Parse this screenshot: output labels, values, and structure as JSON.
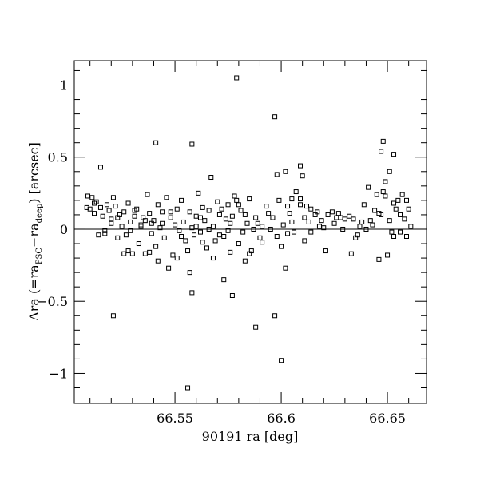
{
  "chart_data": {
    "type": "scatter",
    "title": "",
    "xlabel": "90191 ra [deg]",
    "ylabel_parts": {
      "main": "Δra (=ra",
      "sub1": "PSC",
      "mid": "−ra",
      "sub2": "deep",
      "end": ") [arcsec]"
    },
    "xlim": [
      66.5026,
      66.6684
    ],
    "ylim": [
      -1.208,
      1.169
    ],
    "xticks": [
      66.55,
      66.6,
      66.65
    ],
    "xtick_labels": [
      "66.55",
      "66.6",
      "66.65"
    ],
    "yticks": [
      -1,
      -0.5,
      0,
      0.5,
      1
    ],
    "ytick_labels": [
      "−1",
      "−0.5",
      "0",
      "0.5",
      "1"
    ],
    "zero_line": true,
    "grid": false,
    "marker": "open-square",
    "color": "#000000",
    "points": [
      [
        66.579,
        1.05
      ],
      [
        66.597,
        0.78
      ],
      [
        66.541,
        0.6
      ],
      [
        66.558,
        0.59
      ],
      [
        66.515,
        0.43
      ],
      [
        66.521,
        -0.6
      ],
      [
        66.558,
        -0.44
      ],
      [
        66.556,
        -1.1
      ],
      [
        66.6,
        -0.91
      ],
      [
        66.597,
        -0.6
      ],
      [
        66.588,
        -0.68
      ],
      [
        66.577,
        -0.46
      ],
      [
        66.573,
        -0.35
      ],
      [
        66.602,
        -0.27
      ],
      [
        66.648,
        0.61
      ],
      [
        66.647,
        0.54
      ],
      [
        66.653,
        0.52
      ],
      [
        66.651,
        0.4
      ],
      [
        66.598,
        0.38
      ],
      [
        66.602,
        0.4
      ],
      [
        66.609,
        0.44
      ],
      [
        66.61,
        0.37
      ],
      [
        66.649,
        0.33
      ],
      [
        66.641,
        0.29
      ],
      [
        66.645,
        0.24
      ],
      [
        66.648,
        0.26
      ],
      [
        66.649,
        0.23
      ],
      [
        66.657,
        0.24
      ],
      [
        66.655,
        0.2
      ],
      [
        66.659,
        0.2
      ],
      [
        66.653,
        0.18
      ],
      [
        66.66,
        0.14
      ],
      [
        66.654,
        0.14
      ],
      [
        66.656,
        0.1
      ],
      [
        66.658,
        0.07
      ],
      [
        66.661,
        0.02
      ],
      [
        66.656,
        -0.02
      ],
      [
        66.653,
        -0.05
      ],
      [
        66.659,
        -0.05
      ],
      [
        66.65,
        -0.18
      ],
      [
        66.646,
        -0.21
      ],
      [
        66.651,
        0.06
      ],
      [
        66.647,
        0.1
      ],
      [
        66.644,
        0.13
      ],
      [
        66.642,
        0.06
      ],
      [
        66.64,
        0.0
      ],
      [
        66.637,
        0.02
      ],
      [
        66.635,
        -0.06
      ],
      [
        66.633,
        -0.17
      ],
      [
        66.63,
        0.07
      ],
      [
        66.628,
        0.08
      ],
      [
        66.626,
        0.08
      ],
      [
        66.624,
        0.12
      ],
      [
        66.622,
        0.1
      ],
      [
        66.62,
        0.01
      ],
      [
        66.618,
        0.02
      ],
      [
        66.616,
        0.1
      ],
      [
        66.614,
        0.14
      ],
      [
        66.612,
        0.16
      ],
      [
        66.611,
        0.08
      ],
      [
        66.609,
        0.21
      ],
      [
        66.607,
        0.26
      ],
      [
        66.605,
        0.05
      ],
      [
        66.603,
        -0.03
      ],
      [
        66.601,
        0.03
      ],
      [
        66.6,
        -0.12
      ],
      [
        66.598,
        -0.05
      ],
      [
        66.596,
        0.08
      ],
      [
        66.594,
        0.11
      ],
      [
        66.593,
        0.16
      ],
      [
        66.591,
        0.02
      ],
      [
        66.59,
        -0.06
      ],
      [
        66.588,
        0.08
      ],
      [
        66.586,
        -0.15
      ],
      [
        66.585,
        -0.17
      ],
      [
        66.584,
        0.04
      ],
      [
        66.583,
        -0.22
      ],
      [
        66.582,
        -0.02
      ],
      [
        66.581,
        0.13
      ],
      [
        66.58,
        0.17
      ],
      [
        66.579,
        0.2
      ],
      [
        66.578,
        0.23
      ],
      [
        66.577,
        0.09
      ],
      [
        66.576,
        0.04
      ],
      [
        66.575,
        -0.01
      ],
      [
        66.574,
        0.07
      ],
      [
        66.573,
        -0.05
      ],
      [
        66.572,
        0.14
      ],
      [
        66.571,
        0.1
      ],
      [
        66.57,
        0.19
      ],
      [
        66.569,
        -0.08
      ],
      [
        66.568,
        0.02
      ],
      [
        66.567,
        0.36
      ],
      [
        66.566,
        0.13
      ],
      [
        66.565,
        -0.13
      ],
      [
        66.564,
        0.06
      ],
      [
        66.563,
        0.15
      ],
      [
        66.562,
        -0.02
      ],
      [
        66.561,
        0.25
      ],
      [
        66.56,
        0.09
      ],
      [
        66.559,
        -0.04
      ],
      [
        66.558,
        0.01
      ],
      [
        66.557,
        0.12
      ],
      [
        66.556,
        -0.15
      ],
      [
        66.555,
        -0.08
      ],
      [
        66.554,
        0.05
      ],
      [
        66.553,
        0.2
      ],
      [
        66.552,
        -0.01
      ],
      [
        66.551,
        0.14
      ],
      [
        66.55,
        0.03
      ],
      [
        66.549,
        -0.18
      ],
      [
        66.548,
        0.08
      ],
      [
        66.547,
        -0.27
      ],
      [
        66.546,
        0.22
      ],
      [
        66.545,
        -0.06
      ],
      [
        66.544,
        0.12
      ],
      [
        66.543,
        0.01
      ],
      [
        66.542,
        0.17
      ],
      [
        66.541,
        -0.12
      ],
      [
        66.54,
        0.06
      ],
      [
        66.539,
        -0.03
      ],
      [
        66.538,
        0.11
      ],
      [
        66.537,
        0.24
      ],
      [
        66.536,
        -0.17
      ],
      [
        66.535,
        0.08
      ],
      [
        66.534,
        0.03
      ],
      [
        66.533,
        -0.1
      ],
      [
        66.532,
        0.14
      ],
      [
        66.531,
        0.09
      ],
      [
        66.53,
        -0.17
      ],
      [
        66.529,
        0.05
      ],
      [
        66.528,
        0.18
      ],
      [
        66.527,
        -0.04
      ],
      [
        66.526,
        0.12
      ],
      [
        66.525,
        0.02
      ],
      [
        66.524,
        0.1
      ],
      [
        66.523,
        -0.06
      ],
      [
        66.522,
        0.16
      ],
      [
        66.521,
        0.22
      ],
      [
        66.52,
        0.07
      ],
      [
        66.519,
        0.13
      ],
      [
        66.518,
        0.17
      ],
      [
        66.517,
        -0.03
      ],
      [
        66.516,
        0.09
      ],
      [
        66.515,
        0.15
      ],
      [
        66.514,
        -0.04
      ],
      [
        66.513,
        0.19
      ],
      [
        66.512,
        0.18
      ],
      [
        66.511,
        0.22
      ],
      [
        66.51,
        0.14
      ],
      [
        66.509,
        0.23
      ],
      [
        66.5085,
        0.15
      ],
      [
        66.534,
        0.02
      ],
      [
        66.536,
        0.06
      ],
      [
        66.528,
        -0.15
      ],
      [
        66.526,
        -0.17
      ],
      [
        66.538,
        -0.16
      ],
      [
        66.544,
        0.04
      ],
      [
        66.553,
        -0.05
      ],
      [
        66.557,
        -0.3
      ],
      [
        66.562,
        0.08
      ],
      [
        66.568,
        -0.2
      ],
      [
        66.575,
        0.17
      ],
      [
        66.583,
        0.1
      ],
      [
        66.589,
        0.04
      ],
      [
        66.595,
        0.0
      ],
      [
        66.604,
        0.11
      ],
      [
        66.606,
        -0.02
      ],
      [
        66.613,
        0.05
      ],
      [
        66.617,
        0.12
      ],
      [
        66.621,
        -0.15
      ],
      [
        66.625,
        0.04
      ],
      [
        66.629,
        0.0
      ],
      [
        66.632,
        0.09
      ],
      [
        66.636,
        -0.04
      ],
      [
        66.639,
        0.17
      ],
      [
        66.643,
        0.03
      ],
      [
        66.609,
        0.17
      ],
      [
        66.599,
        0.2
      ],
      [
        66.587,
        0.0
      ],
      [
        66.58,
        -0.1
      ],
      [
        66.571,
        -0.04
      ],
      [
        66.566,
        0.0
      ],
      [
        66.56,
        0.02
      ],
      [
        66.548,
        0.12
      ],
      [
        66.542,
        -0.22
      ],
      [
        66.531,
        0.13
      ],
      [
        66.523,
        0.08
      ],
      [
        66.517,
        -0.01
      ],
      [
        66.512,
        0.11
      ],
      [
        66.605,
        0.21
      ],
      [
        66.611,
        -0.08
      ],
      [
        66.619,
        0.06
      ],
      [
        66.627,
        0.11
      ],
      [
        66.634,
        0.07
      ],
      [
        66.638,
        0.05
      ],
      [
        66.646,
        0.11
      ],
      [
        66.652,
        -0.02
      ],
      [
        66.585,
        0.21
      ],
      [
        66.591,
        -0.09
      ],
      [
        66.576,
        -0.16
      ],
      [
        66.563,
        -0.09
      ],
      [
        66.551,
        -0.2
      ],
      [
        66.539,
        0.04
      ],
      [
        66.529,
        -0.01
      ],
      [
        66.52,
        0.04
      ],
      [
        66.603,
        0.16
      ],
      [
        66.614,
        -0.02
      ]
    ]
  }
}
